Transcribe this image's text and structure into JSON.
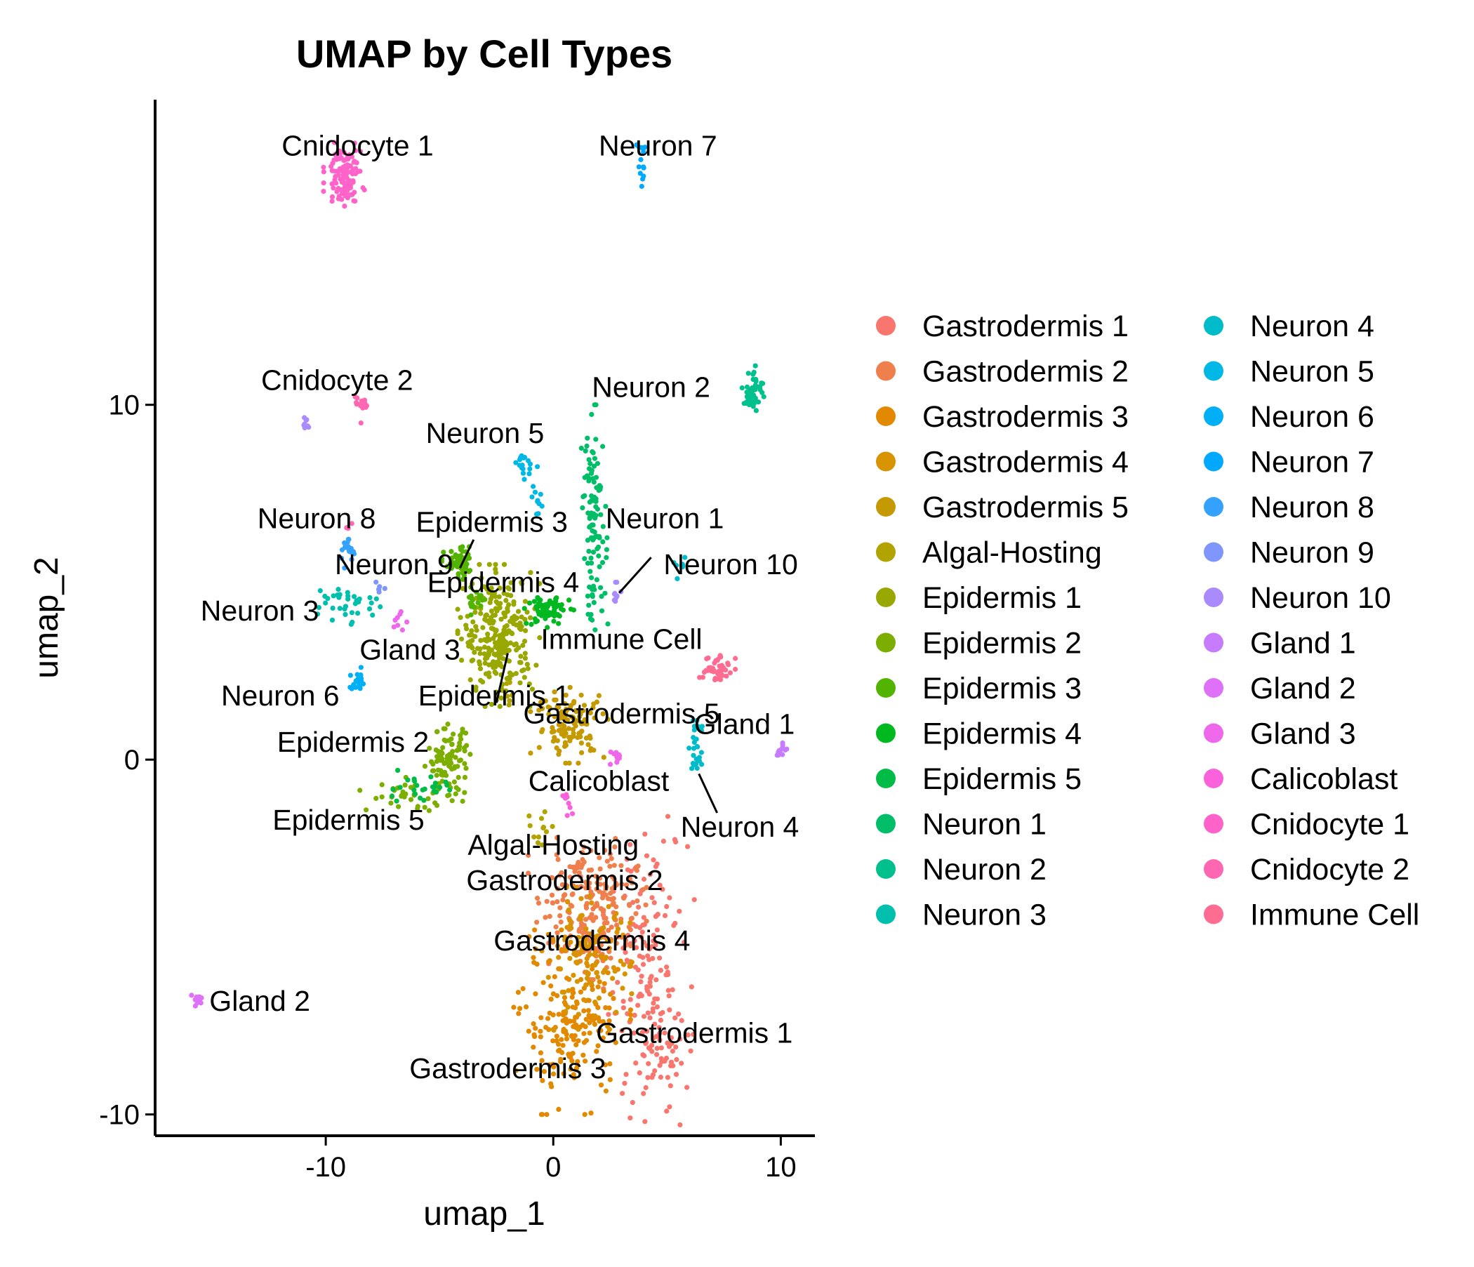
{
  "chart_data": {
    "type": "scatter",
    "title": "UMAP by Cell Types",
    "xlabel": "umap_1",
    "ylabel": "umap_2",
    "xlim": [
      -17.5,
      11.5
    ],
    "ylim": [
      -10.6,
      18.6
    ],
    "xticks": [
      -10,
      0,
      10
    ],
    "xtick_labels": [
      "-10",
      "0",
      "10"
    ],
    "yticks": [
      -10,
      0,
      10
    ],
    "ytick_labels": [
      "-10",
      "0",
      "10"
    ],
    "grid": false,
    "legend_position": "right",
    "legend_columns": 2,
    "series": [
      {
        "name": "Gastrodermis 1",
        "color": "#F8766D",
        "clusters": [
          [
            4.2,
            -6.2,
            2.0,
            4.6,
            170
          ],
          [
            5.0,
            -7.8,
            1.4,
            1.4,
            30
          ]
        ],
        "label": {
          "text": "Gastrodermis 1",
          "x": 6.2,
          "y": -7.7
        }
      },
      {
        "name": "Gastrodermis 2",
        "color": "#EF7F4D",
        "clusters": [
          [
            1.5,
            -3.8,
            2.6,
            1.6,
            170
          ],
          [
            1.6,
            -5.2,
            1.8,
            1.0,
            60
          ]
        ],
        "label": {
          "text": "Gastrodermis 2",
          "x": 0.5,
          "y": -3.4
        }
      },
      {
        "name": "Gastrodermis 3",
        "color": "#E38900",
        "clusters": [
          [
            0.8,
            -7.4,
            2.6,
            2.6,
            200
          ]
        ],
        "label": {
          "text": "Gastrodermis 3",
          "x": -2.0,
          "y": -8.7
        }
      },
      {
        "name": "Gastrodermis 4",
        "color": "#D79400",
        "clusters": [
          [
            1.5,
            -5.6,
            2.2,
            2.0,
            110
          ]
        ],
        "label": {
          "text": "Gastrodermis 4",
          "x": 1.7,
          "y": -5.1
        }
      },
      {
        "name": "Gastrodermis 5",
        "color": "#C49A00",
        "clusters": [
          [
            0.8,
            1.0,
            1.8,
            1.1,
            120
          ]
        ],
        "label": {
          "text": "Gastrodermis 5",
          "x": 3.0,
          "y": 1.3
        }
      },
      {
        "name": "Algal-Hosting",
        "color": "#B1A300",
        "clusters": [
          [
            -0.6,
            -1.9,
            0.8,
            0.6,
            12
          ],
          [
            -2.0,
            1.9,
            0.5,
            0.5,
            10
          ]
        ],
        "label": {
          "text": "Algal-Hosting",
          "x": 0.0,
          "y": -2.4
        }
      },
      {
        "name": "Epidermis 1",
        "color": "#99A800",
        "clusters": [
          [
            -2.4,
            3.5,
            1.8,
            2.0,
            260
          ]
        ],
        "label": {
          "text": "Epidermis 1",
          "x": -2.6,
          "y": 1.8
        }
      },
      {
        "name": "Epidermis 2",
        "color": "#7CAE00",
        "clusters": [
          [
            -4.6,
            0.0,
            1.1,
            1.0,
            90
          ],
          [
            -6.2,
            -1.0,
            2.3,
            0.5,
            40
          ]
        ],
        "label": {
          "text": "Epidermis 2",
          "x": -8.8,
          "y": 0.5
        }
      },
      {
        "name": "Epidermis 3",
        "color": "#53B400",
        "clusters": [
          [
            -4.1,
            5.5,
            0.8,
            0.5,
            60
          ],
          [
            -3.4,
            4.5,
            0.6,
            0.5,
            20
          ]
        ],
        "label": {
          "text": "Epidermis 3",
          "x": -2.7,
          "y": 6.7
        }
      },
      {
        "name": "Epidermis 4",
        "color": "#00B81F",
        "clusters": [
          [
            -0.2,
            4.2,
            1.1,
            0.5,
            70
          ]
        ],
        "label": {
          "text": "Epidermis 4",
          "x": -2.2,
          "y": 5.0
        }
      },
      {
        "name": "Epidermis 5",
        "color": "#00BB45",
        "clusters": [
          [
            -6.2,
            -0.8,
            2.0,
            0.5,
            25
          ]
        ],
        "label": {
          "text": "Epidermis 5",
          "x": -9.0,
          "y": -1.7
        }
      },
      {
        "name": "Neuron 1",
        "color": "#00BE67",
        "clusters": [
          [
            1.8,
            6.7,
            0.6,
            3.3,
            110
          ]
        ],
        "label": {
          "text": "Neuron 1",
          "x": 4.9,
          "y": 6.8
        }
      },
      {
        "name": "Neuron 2",
        "color": "#00C08D",
        "clusters": [
          [
            8.8,
            10.4,
            0.5,
            0.7,
            50
          ]
        ],
        "label": {
          "text": "Neuron 2",
          "x": 4.3,
          "y": 10.5
        }
      },
      {
        "name": "Neuron 3",
        "color": "#00BFAD",
        "clusters": [
          [
            -9.0,
            4.4,
            1.8,
            0.7,
            35
          ]
        ],
        "label": {
          "text": "Neuron 3",
          "x": -12.9,
          "y": 4.2
        }
      },
      {
        "name": "Neuron 4",
        "color": "#00BCCA",
        "clusters": [
          [
            6.3,
            0.3,
            0.4,
            0.9,
            25
          ],
          [
            5.6,
            5.4,
            0.3,
            0.3,
            8
          ]
        ],
        "label": {
          "text": "Neuron 4",
          "x": 8.2,
          "y": -1.9
        }
      },
      {
        "name": "Neuron 5",
        "color": "#00B8E5",
        "clusters": [
          [
            -1.2,
            8.3,
            0.5,
            0.4,
            18
          ],
          [
            -0.7,
            7.2,
            0.4,
            0.5,
            10
          ]
        ],
        "label": {
          "text": "Neuron 5",
          "x": -3.0,
          "y": 9.2
        }
      },
      {
        "name": "Neuron 6",
        "color": "#00B0F6",
        "clusters": [
          [
            -8.6,
            2.2,
            0.4,
            0.4,
            18
          ]
        ],
        "label": {
          "text": "Neuron 6",
          "x": -12.0,
          "y": 1.8
        }
      },
      {
        "name": "Neuron 7",
        "color": "#00A9FF",
        "clusters": [
          [
            3.9,
            16.7,
            0.3,
            0.9,
            14
          ]
        ],
        "label": {
          "text": "Neuron 7",
          "x": 4.6,
          "y": 17.3
        }
      },
      {
        "name": "Neuron 8",
        "color": "#35A2FF",
        "clusters": [
          [
            -9.0,
            5.9,
            0.5,
            0.5,
            18
          ]
        ],
        "label": {
          "text": "Neuron 8",
          "x": -10.4,
          "y": 6.8
        }
      },
      {
        "name": "Neuron 9",
        "color": "#7F96FF",
        "clusters": [
          [
            -7.7,
            4.8,
            0.4,
            0.4,
            6
          ]
        ],
        "label": {
          "text": "Neuron 9",
          "x": -7.0,
          "y": 5.5
        }
      },
      {
        "name": "Neuron 10",
        "color": "#A98AFF",
        "clusters": [
          [
            2.8,
            4.7,
            0.3,
            0.3,
            10
          ],
          [
            -10.9,
            9.5,
            0.2,
            0.2,
            8
          ]
        ],
        "label": {
          "text": "Neuron 10",
          "x": 7.8,
          "y": 5.5
        }
      },
      {
        "name": "Gland 1",
        "color": "#C77CFF",
        "clusters": [
          [
            10.0,
            0.3,
            0.3,
            0.3,
            12
          ]
        ],
        "label": {
          "text": "Gland 1",
          "x": 8.4,
          "y": 1.0
        }
      },
      {
        "name": "Gland 2",
        "color": "#DF70F8",
        "clusters": [
          [
            -15.6,
            -6.8,
            0.3,
            0.3,
            10
          ]
        ],
        "label": {
          "text": "Gland 2",
          "x": -12.9,
          "y": -6.8
        }
      },
      {
        "name": "Gland 3",
        "color": "#EF67EB",
        "clusters": [
          [
            -6.7,
            3.9,
            0.3,
            0.4,
            8
          ],
          [
            2.8,
            0.1,
            0.4,
            0.3,
            10
          ]
        ],
        "label": {
          "text": "Gland 3",
          "x": -6.3,
          "y": 3.1
        }
      },
      {
        "name": "Calicoblast",
        "color": "#FA62DB",
        "clusters": [
          [
            0.6,
            -1.2,
            0.3,
            0.6,
            8
          ]
        ],
        "label": {
          "text": "Calicoblast",
          "x": 2.0,
          "y": -0.6
        }
      },
      {
        "name": "Cnidocyte 1",
        "color": "#FF62C8",
        "clusters": [
          [
            -9.2,
            16.5,
            0.9,
            0.9,
            110
          ]
        ],
        "label": {
          "text": "Cnidocyte 1",
          "x": -8.6,
          "y": 17.3
        }
      },
      {
        "name": "Cnidocyte 2",
        "color": "#FF67B2",
        "clusters": [
          [
            -8.5,
            10.0,
            0.3,
            0.6,
            14
          ],
          [
            -9.0,
            6.6,
            0.2,
            0.3,
            4
          ]
        ],
        "label": {
          "text": "Cnidocyte 2",
          "x": -9.5,
          "y": 10.7
        }
      },
      {
        "name": "Immune Cell",
        "color": "#FF6C91",
        "clusters": [
          [
            7.1,
            2.6,
            0.9,
            0.5,
            45
          ]
        ],
        "label": {
          "text": "Immune Cell",
          "x": 3.0,
          "y": 3.4
        }
      }
    ],
    "label_leaders": [
      {
        "from": [
          -4.1,
          5.4
        ],
        "to": [
          -3.5,
          6.2
        ]
      },
      {
        "from": [
          2.9,
          4.7
        ],
        "to": [
          4.3,
          5.7
        ]
      },
      {
        "from": [
          -2.5,
          1.6
        ],
        "to": [
          -2.0,
          3.0
        ]
      },
      {
        "from": [
          6.4,
          -0.4
        ],
        "to": [
          7.2,
          -1.5
        ]
      }
    ]
  }
}
